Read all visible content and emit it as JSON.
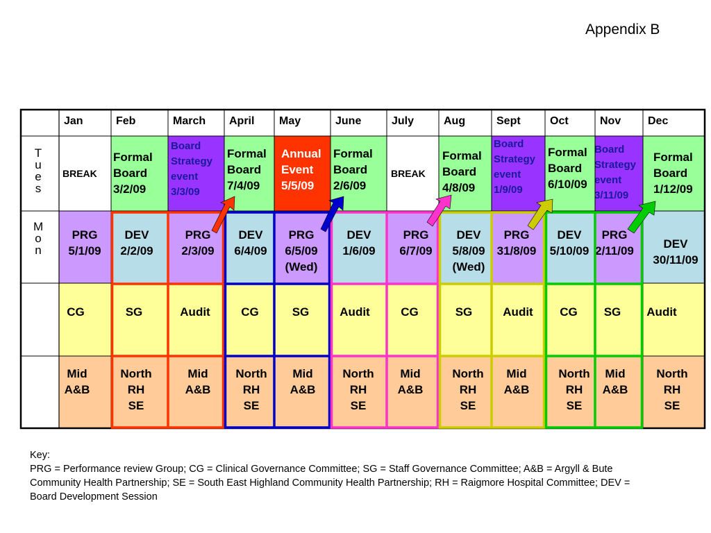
{
  "title": "Appendix B",
  "months": [
    "Jan",
    "Feb",
    "March",
    "April",
    "May",
    "June",
    "July",
    "Aug",
    "Sept",
    "Oct",
    "Nov",
    "Dec"
  ],
  "row_labels": {
    "tues": [
      "T",
      "u",
      "e",
      "s"
    ],
    "mon": [
      "M",
      "o",
      "n"
    ]
  },
  "tues_row": [
    {
      "lines": [
        "BREAK"
      ],
      "color": "#ffffff"
    },
    {
      "lines": [
        "Formal",
        "Board",
        "3/2/09"
      ],
      "color": "#99ff99"
    },
    {
      "lines": [
        "Board",
        "Strategy",
        "event",
        "3/3/09"
      ],
      "color": "#9933ff"
    },
    {
      "lines": [
        "Formal",
        "Board",
        "7/4/09"
      ],
      "color": "#99ff99"
    },
    {
      "lines": [
        "Annual",
        "Event",
        "5/5/09"
      ],
      "color": "#ff3300"
    },
    {
      "lines": [
        "Formal",
        "Board",
        "2/6/09"
      ],
      "color": "#99ff99"
    },
    {
      "lines": [
        "BREAK"
      ],
      "color": "#ffffff"
    },
    {
      "lines": [
        "Formal",
        "Board",
        "4/8/09"
      ],
      "color": "#99ff99"
    },
    {
      "lines": [
        "Board",
        "Strategy",
        "event",
        "1/9/09"
      ],
      "color": "#9933ff"
    },
    {
      "lines": [
        "Formal",
        "Board",
        "6/10/09"
      ],
      "color": "#99ff99"
    },
    {
      "lines": [
        "Board",
        "Strategy",
        "event",
        "3/11/09"
      ],
      "color": "#9933ff"
    },
    {
      "lines": [
        "Formal",
        "Board",
        "1/12/09"
      ],
      "color": "#99ff99"
    }
  ],
  "mon_row": [
    {
      "lines": [
        "PRG",
        "5/1/09"
      ],
      "color": "#cc99ff"
    },
    {
      "lines": [
        "DEV",
        "2/2/09"
      ],
      "color": "#b7dde8"
    },
    {
      "lines": [
        "PRG",
        "2/3/09"
      ],
      "color": "#cc99ff"
    },
    {
      "lines": [
        "DEV",
        "6/4/09"
      ],
      "color": "#b7dde8"
    },
    {
      "lines": [
        "PRG",
        "6/5/09",
        "(Wed)"
      ],
      "color": "#cc99ff"
    },
    {
      "lines": [
        "DEV",
        "1/6/09"
      ],
      "color": "#b7dde8"
    },
    {
      "lines": [
        "PRG",
        "6/7/09"
      ],
      "color": "#cc99ff"
    },
    {
      "lines": [
        "DEV",
        "5/8/09",
        "(Wed)"
      ],
      "color": "#b7dde8"
    },
    {
      "lines": [
        "PRG",
        "31/8/09"
      ],
      "color": "#cc99ff"
    },
    {
      "lines": [
        "DEV",
        "5/10/09"
      ],
      "color": "#b7dde8"
    },
    {
      "lines": [
        "PRG",
        "2/11/09"
      ],
      "color": "#cc99ff"
    },
    {
      "lines": [
        "DEV",
        "30/11/09"
      ],
      "color": "#b7dde8"
    }
  ],
  "committee_row": [
    "CG",
    "SG",
    "Audit",
    "CG",
    "SG",
    "Audit",
    "CG",
    "SG",
    "Audit",
    "CG",
    "SG",
    "Audit"
  ],
  "cho_row": [
    [
      "Mid",
      "A&B"
    ],
    [
      "North",
      "RH",
      "SE"
    ],
    [
      "Mid",
      "A&B"
    ],
    [
      "North",
      "RH",
      "SE"
    ],
    [
      "Mid",
      "A&B"
    ],
    [
      "North",
      "RH",
      "SE"
    ],
    [
      "Mid",
      "A&B"
    ],
    [
      "North",
      "RH",
      "SE"
    ],
    [
      "Mid",
      "A&B"
    ],
    [
      "North",
      "RH",
      "SE"
    ],
    [
      "Mid",
      "A&B"
    ],
    [
      "North",
      "RH",
      "SE"
    ]
  ],
  "colors": {
    "committee_fill": "#ffff99",
    "cho_fill": "#ffcc99",
    "group_red": "#ff3300",
    "group_blue": "#0000cc",
    "group_pink": "#ff33cc",
    "group_olive": "#cccc00",
    "group_green": "#00cc00",
    "grid_line": "#000000"
  },
  "key": {
    "heading": "Key:",
    "text": "PRG = Performance review Group; CG = Clinical Governance Committee; SG = Staff Governance Committee; A&B = Argyll & Bute Community Health Partnership; SE = South East Highland Community Health Partnership; RH = Raigmore Hospital Committee; DEV = Board Development Session"
  }
}
